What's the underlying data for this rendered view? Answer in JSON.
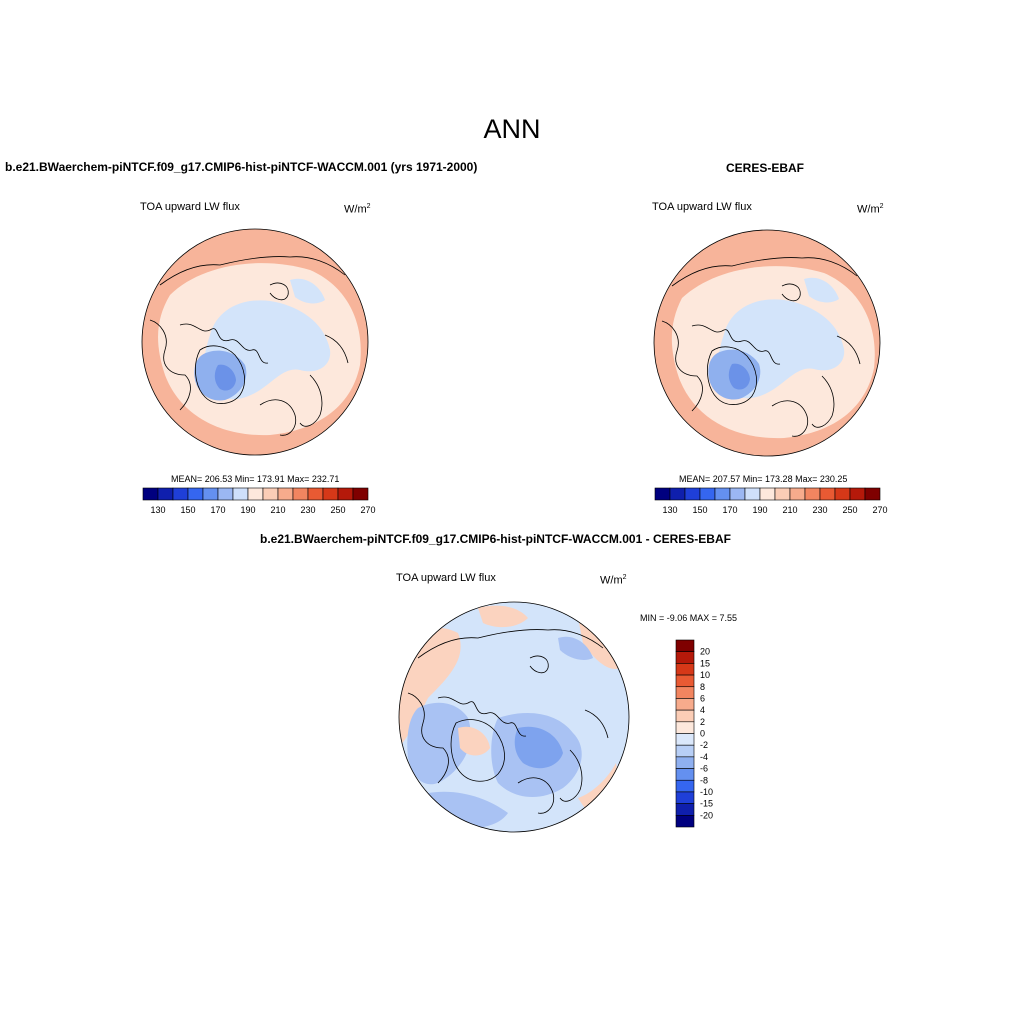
{
  "figure": {
    "title": "ANN",
    "top_left": {
      "case_title": "b.e21.BWaerchem-piNTCF.f09_g17.CMIP6-hist-piNTCF-WACCM.001 (yrs 1971-2000)",
      "variable": "TOA upward LW flux",
      "units_base": "W/m",
      "units_exp": "2",
      "stats": "MEAN= 206.53  Min= 173.91  Max= 232.71"
    },
    "top_right": {
      "case_title": "CERES-EBAF",
      "variable": "TOA upward LW flux",
      "units_base": "W/m",
      "units_exp": "2",
      "stats": "MEAN= 207.57  Min= 173.28  Max= 230.25"
    },
    "bottom": {
      "case_title": "b.e21.BWaerchem-piNTCF.f09_g17.CMIP6-hist-piNTCF-WACCM.001 - CERES-EBAF",
      "variable": "TOA upward LW flux",
      "units_base": "W/m",
      "units_exp": "2",
      "stats": "MIN =  -9.06 MAX =   7.55"
    }
  },
  "colorbars": {
    "field": {
      "orientation": "horizontal",
      "levels": [
        130,
        140,
        150,
        160,
        170,
        180,
        190,
        200,
        210,
        220,
        230,
        240,
        250,
        260,
        270
      ],
      "tick_labels": [
        "130",
        "150",
        "170",
        "190",
        "210",
        "230",
        "250",
        "270"
      ],
      "colors": [
        "#00007f",
        "#0f1fad",
        "#1f3fd8",
        "#3566f0",
        "#6490f0",
        "#9bb7f3",
        "#cfe0fb",
        "#fde8dc",
        "#fbcdb6",
        "#f7ab8c",
        "#f28560",
        "#e95a33",
        "#d63818",
        "#b5190a",
        "#7f0000"
      ]
    },
    "diff": {
      "orientation": "vertical",
      "tick_labels": [
        "20",
        "15",
        "10",
        "8",
        "6",
        "4",
        "2",
        "0",
        "-2",
        "-4",
        "-6",
        "-8",
        "-10",
        "-15",
        "-20"
      ],
      "colors": [
        "#7f0000",
        "#b5190a",
        "#d63818",
        "#e95a33",
        "#f28560",
        "#f7ab8c",
        "#fbcdb6",
        "#fde8dc",
        "#dbe8fb",
        "#b8cff6",
        "#8fb0f0",
        "#6490f0",
        "#3566f0",
        "#1f3fd8",
        "#0f1fad",
        "#00007f"
      ]
    }
  },
  "map_fill": {
    "ocean_warm": "#f7b49a",
    "mid": "#fde8dc",
    "arctic": "#d3e4fa",
    "greenland": "#8fb0ee",
    "greenland_core": "#6b92e8",
    "diff_warm": "#fbd3bf",
    "diff_cool": "#a9c2f3",
    "diff_strong": "#7ea3ee"
  }
}
